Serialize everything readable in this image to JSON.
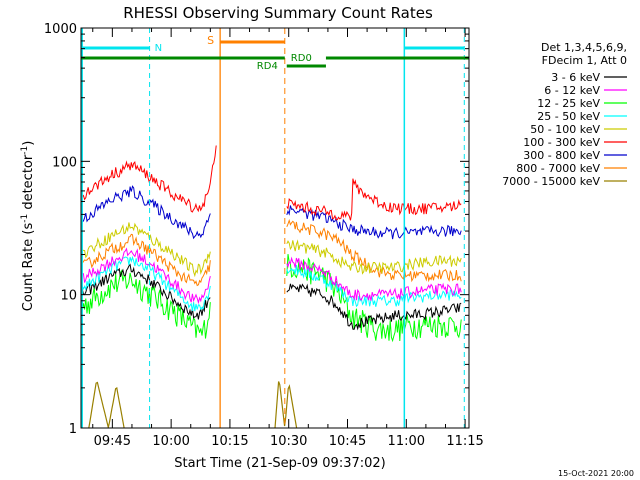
{
  "chart_data": {
    "type": "line",
    "title": "RHESSI Observing Summary Count Rates",
    "xlabel": "Start Time (21-Sep-09 09:37:02)",
    "ylabel_parts": [
      "Count Rate (s",
      "-1",
      " detector",
      "-1",
      ")"
    ],
    "ylabel": "Count Rate (s^-1 detector^-1)",
    "footer_date": "15-Oct-2021 20:00",
    "yscale": "log",
    "ylim": [
      1,
      1000
    ],
    "xlim_minutes_after_0937": [
      0,
      99
    ],
    "y_ticks": [
      "1",
      "10",
      "100",
      "1000"
    ],
    "x_ticks": [
      {
        "min": 8,
        "label": "09:45"
      },
      {
        "min": 23,
        "label": "10:00"
      },
      {
        "min": 38,
        "label": "10:15"
      },
      {
        "min": 53,
        "label": "10:30"
      },
      {
        "min": 68,
        "label": "10:45"
      },
      {
        "min": 83,
        "label": "11:00"
      },
      {
        "min": 98,
        "label": "11:15"
      }
    ],
    "legend_header": [
      "Det 1,3,4,5,6,9,",
      "FDecim 1, Att 0"
    ],
    "series": [
      {
        "name": "3 - 6 keV",
        "color": "#000000",
        "segA": [
          [
            0,
            10
          ],
          [
            8,
            14
          ],
          [
            13,
            15.5
          ],
          [
            18,
            12.5
          ],
          [
            24,
            9
          ],
          [
            29,
            7
          ],
          [
            31,
            7.5
          ],
          [
            33,
            10
          ]
        ],
        "segB": [
          [
            52.5,
            11
          ],
          [
            56,
            11
          ],
          [
            62,
            10
          ],
          [
            66,
            8
          ],
          [
            69,
            6
          ],
          [
            76,
            6.5
          ],
          [
            80,
            7
          ],
          [
            84,
            7
          ],
          [
            92,
            7.5
          ],
          [
            97,
            8
          ]
        ]
      },
      {
        "name": "6 - 12 keV",
        "color": "#ff00ff",
        "segA": [
          [
            0,
            13
          ],
          [
            8,
            18
          ],
          [
            13,
            21
          ],
          [
            18,
            17
          ],
          [
            24,
            12
          ],
          [
            29,
            9
          ],
          [
            31,
            9.5
          ],
          [
            33,
            13
          ]
        ],
        "segB": [
          [
            52.5,
            18
          ],
          [
            56,
            17
          ],
          [
            62,
            15
          ],
          [
            66,
            12
          ],
          [
            69,
            10
          ],
          [
            76,
            10
          ],
          [
            80,
            10
          ],
          [
            84,
            10.5
          ],
          [
            92,
            11
          ],
          [
            97,
            11
          ]
        ]
      },
      {
        "name": "12 - 25 keV",
        "color": "#00ff00",
        "segA": [
          [
            0,
            8
          ],
          [
            8,
            12
          ],
          [
            13,
            13
          ],
          [
            18,
            10
          ],
          [
            24,
            7.5
          ],
          [
            29,
            5.5
          ],
          [
            31,
            5
          ],
          [
            33,
            8
          ]
        ],
        "segB": [
          [
            52.5,
            17
          ],
          [
            56,
            16
          ],
          [
            62,
            14
          ],
          [
            66,
            10
          ],
          [
            69,
            7
          ],
          [
            76,
            5.5
          ],
          [
            80,
            5.5
          ],
          [
            84,
            6
          ],
          [
            92,
            6
          ],
          [
            97,
            6
          ]
        ]
      },
      {
        "name": "25 - 50 keV",
        "color": "#00ffff",
        "segA": [
          [
            0,
            11
          ],
          [
            8,
            16
          ],
          [
            13,
            18.5
          ],
          [
            18,
            15
          ],
          [
            24,
            10.5
          ],
          [
            29,
            8
          ],
          [
            31,
            8.5
          ],
          [
            33,
            11
          ]
        ],
        "segB": [
          [
            52.5,
            16
          ],
          [
            56,
            15
          ],
          [
            62,
            13
          ],
          [
            66,
            11
          ],
          [
            69,
            9
          ],
          [
            76,
            9
          ],
          [
            80,
            9
          ],
          [
            84,
            9.5
          ],
          [
            92,
            10
          ],
          [
            97,
            10
          ]
        ]
      },
      {
        "name": "50 - 100 keV",
        "color": "#cccc00",
        "segA": [
          [
            0,
            20
          ],
          [
            8,
            28
          ],
          [
            13,
            33
          ],
          [
            18,
            26
          ],
          [
            24,
            20
          ],
          [
            29,
            15
          ],
          [
            31,
            16
          ],
          [
            33,
            22
          ]
        ],
        "segB": [
          [
            52.5,
            24
          ],
          [
            56,
            23
          ],
          [
            62,
            21
          ],
          [
            66,
            18
          ],
          [
            69,
            16
          ],
          [
            76,
            16
          ],
          [
            80,
            16
          ],
          [
            84,
            17
          ],
          [
            92,
            18
          ],
          [
            97,
            18
          ]
        ]
      },
      {
        "name": "100 - 300 keV",
        "color": "#ff0000",
        "segA": [
          [
            0,
            55
          ],
          [
            8,
            80
          ],
          [
            13,
            95
          ],
          [
            18,
            75
          ],
          [
            24,
            55
          ],
          [
            29,
            45
          ],
          [
            31,
            46
          ],
          [
            33,
            65
          ],
          [
            34.5,
            140
          ]
        ],
        "segB": [
          [
            52.5,
            48
          ],
          [
            56,
            46
          ],
          [
            62,
            42
          ],
          [
            66,
            40
          ],
          [
            69,
            38
          ],
          [
            69.3,
            68
          ],
          [
            73,
            55
          ],
          [
            78,
            46
          ],
          [
            84,
            44
          ],
          [
            92,
            45
          ],
          [
            97,
            47
          ]
        ]
      },
      {
        "name": "300 - 800 keV",
        "color": "#0000cc",
        "segA": [
          [
            0,
            36
          ],
          [
            8,
            52
          ],
          [
            13,
            60
          ],
          [
            18,
            48
          ],
          [
            24,
            36
          ],
          [
            29,
            28
          ],
          [
            31,
            29
          ],
          [
            33,
            40
          ]
        ],
        "segB": [
          [
            52.5,
            44
          ],
          [
            56,
            42
          ],
          [
            62,
            38
          ],
          [
            66,
            34
          ],
          [
            69,
            31
          ],
          [
            76,
            29
          ],
          [
            80,
            29
          ],
          [
            84,
            29
          ],
          [
            92,
            30
          ],
          [
            97,
            30
          ]
        ]
      },
      {
        "name": "800 - 7000 keV",
        "color": "#ff8000",
        "segA": [
          [
            0,
            16
          ],
          [
            8,
            22
          ],
          [
            13,
            26
          ],
          [
            18,
            21
          ],
          [
            24,
            15
          ],
          [
            29,
            12
          ],
          [
            31,
            12.5
          ],
          [
            33,
            17
          ]
        ],
        "segB": [
          [
            52.5,
            34
          ],
          [
            56,
            32
          ],
          [
            62,
            29
          ],
          [
            66,
            25
          ],
          [
            69,
            20
          ],
          [
            76,
            15
          ],
          [
            80,
            14
          ],
          [
            84,
            14
          ],
          [
            92,
            14
          ],
          [
            97,
            14
          ]
        ]
      },
      {
        "name": "7000 - 15000 keV",
        "color": "#998000",
        "segA": [
          [
            2,
            1
          ],
          [
            4,
            2.3
          ],
          [
            7,
            1
          ],
          [
            9,
            2.1
          ],
          [
            11,
            1
          ]
        ],
        "segB": [
          [
            49.5,
            1
          ],
          [
            50.5,
            2.4
          ],
          [
            52,
            1
          ],
          [
            53,
            2.2
          ],
          [
            55,
            1
          ]
        ]
      }
    ],
    "annotations": {
      "N": {
        "label": "N",
        "color": "#00e5ee"
      },
      "S": {
        "label": "S",
        "color": "#ff8000"
      },
      "RD0": {
        "label": "RD0",
        "color": "#008800"
      },
      "RD4": {
        "label": "RD4",
        "color": "#008800"
      }
    },
    "grid": false,
    "legend_position": "right"
  }
}
